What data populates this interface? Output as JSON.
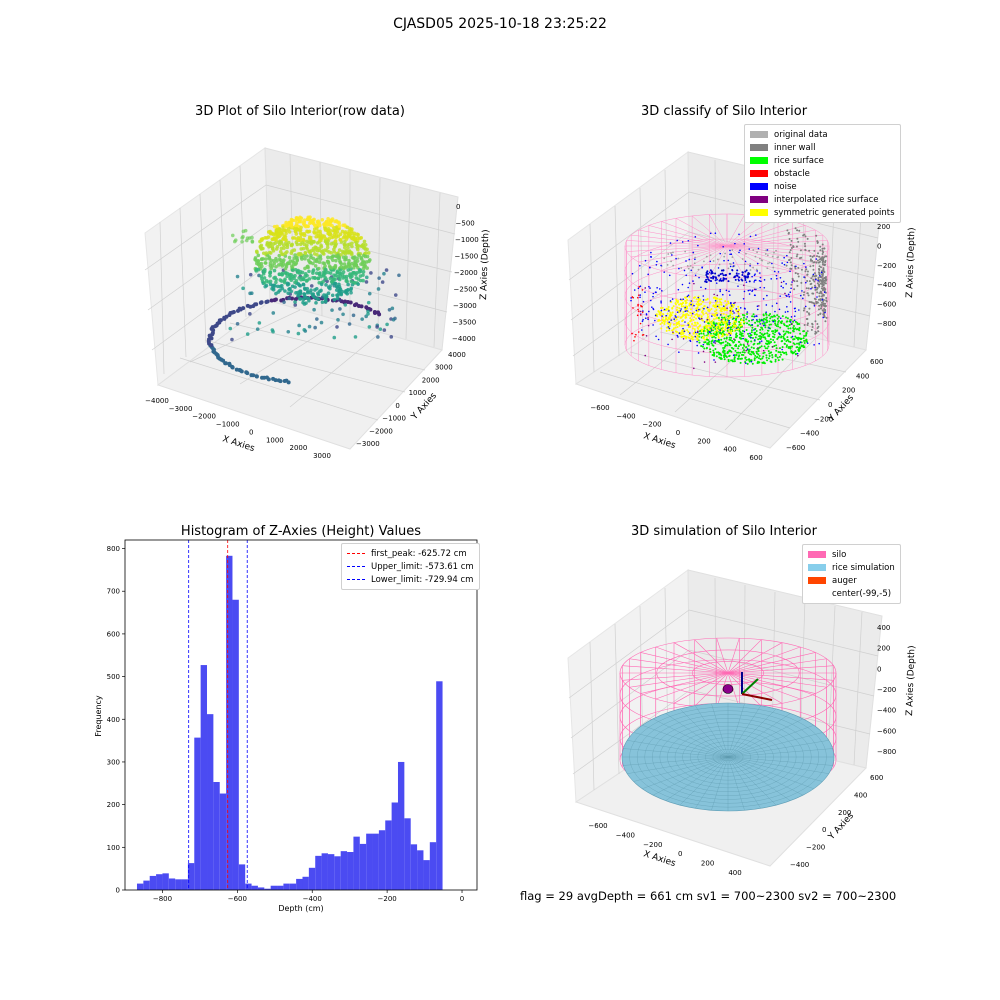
{
  "suptitle": "CJASD05 2025-10-18 23:25:22",
  "panels": {
    "raw": {
      "title": "3D Plot of Silo Interior(row data)",
      "xlabel": "X Axies",
      "ylabel": "Y Axies",
      "zlabel": "Z Axies (Depth)",
      "xticks": [
        "−4000",
        "−3000",
        "−2000",
        "−1000",
        "0",
        "1000",
        "2000",
        "3000"
      ],
      "yticks": [
        "−3000",
        "−2000",
        "−1000",
        "0",
        "1000",
        "2000",
        "3000",
        "4000"
      ],
      "zticks": [
        "0",
        "−500",
        "−1000",
        "−1500",
        "−2000",
        "−2500",
        "−3000",
        "−3500",
        "−4000"
      ]
    },
    "classify": {
      "title": "3D classify of Silo Interior",
      "xlabel": "X Axies",
      "ylabel": "Y Axies",
      "zlabel": "Z Axies (Depth)",
      "xticks": [
        "−600",
        "−400",
        "−200",
        "0",
        "200",
        "400",
        "600"
      ],
      "yticks": [
        "−600",
        "−400",
        "−200",
        "0",
        "200",
        "400",
        "600"
      ],
      "zticks": [
        "200",
        "0",
        "−200",
        "−400",
        "−600",
        "−800"
      ],
      "legend": [
        {
          "label": "original data",
          "color": "#b0b0b0"
        },
        {
          "label": "inner wall",
          "color": "#808080"
        },
        {
          "label": "rice surface",
          "color": "#00ff00"
        },
        {
          "label": "obstacle",
          "color": "#ff0000"
        },
        {
          "label": "noise",
          "color": "#0000ff"
        },
        {
          "label": "interpolated rice surface",
          "color": "#800080"
        },
        {
          "label": "symmetric generated points",
          "color": "#ffff00"
        }
      ]
    },
    "histogram": {
      "title": "Histogram of Z-Axies (Height) Values",
      "xlabel": "Depth (cm)",
      "ylabel": "Frequency",
      "legend": [
        {
          "label": "first_peak: -625.72 cm",
          "color": "#ff0000"
        },
        {
          "label": "Upper_limit: -573.61 cm",
          "color": "#0000ff"
        },
        {
          "label": "Lower_limit: -729.94 cm",
          "color": "#0000ff"
        }
      ]
    },
    "simulation": {
      "title": "3D simulation of Silo Interior",
      "xlabel": "X Axies",
      "ylabel": "Y Axies",
      "zlabel": "Z Axies (Depth)",
      "xticks": [
        "−600",
        "−400",
        "−200",
        "0",
        "200",
        "400"
      ],
      "yticks": [
        "−400",
        "−200",
        "0",
        "200",
        "400",
        "600"
      ],
      "zticks": [
        "400",
        "200",
        "0",
        "−200",
        "−400",
        "−600",
        "−800"
      ],
      "legend": [
        {
          "label": "silo",
          "color": "#ff69b4"
        },
        {
          "label": "rice simulation",
          "color": "#87ceeb"
        },
        {
          "label": "auger",
          "color": "#ff4500"
        },
        {
          "label": "center(-99,-5)",
          "color": "#ffffff"
        }
      ]
    }
  },
  "status": {
    "text": "flag = 29  avgDepth = 661 cm  sv1 = 700~2300  sv2 = 700~2300"
  },
  "chart_data": [
    {
      "type": "scatter",
      "title": "3D Plot of Silo Interior(row data)",
      "xlabel": "X Axies",
      "ylabel": "Y Axies",
      "zlabel": "Z Axies (Depth)",
      "xlim": [
        -4500,
        3500
      ],
      "ylim": [
        -3500,
        4500
      ],
      "zlim": [
        -4000,
        0
      ]
    },
    {
      "type": "scatter",
      "title": "3D classify of Silo Interior",
      "xlabel": "X Axies",
      "ylabel": "Y Axies",
      "zlabel": "Z Axies (Depth)",
      "xlim": [
        -700,
        650
      ],
      "ylim": [
        -650,
        650
      ],
      "zlim": [
        -900,
        300
      ]
    },
    {
      "type": "bar",
      "title": "Histogram of Z-Axies (Height) Values",
      "xlabel": "Depth (cm)",
      "ylabel": "Frequency",
      "xlim": [
        -900,
        40
      ],
      "ylim": [
        0,
        820
      ],
      "xticks": [
        -800,
        -600,
        -400,
        -200,
        0
      ],
      "yticks": [
        0,
        100,
        200,
        300,
        400,
        500,
        600,
        700,
        800
      ],
      "bin_width": 17,
      "bin_start": -868,
      "values": [
        15,
        22,
        33,
        37,
        39,
        27,
        25,
        25,
        63,
        357,
        527,
        412,
        253,
        226,
        783,
        680,
        60,
        15,
        10,
        6,
        3,
        10,
        10,
        15,
        15,
        26,
        31,
        52,
        80,
        86,
        84,
        79,
        91,
        89,
        125,
        108,
        132,
        132,
        140,
        163,
        205,
        300,
        168,
        107,
        93,
        70,
        112,
        489
      ],
      "vlines": [
        {
          "x": -625.72,
          "label": "first_peak: -625.72 cm",
          "color": "#ff0000"
        },
        {
          "x": -573.61,
          "label": "Upper_limit: -573.61 cm",
          "color": "#0000ff"
        },
        {
          "x": -729.94,
          "label": "Lower_limit: -729.94 cm",
          "color": "#0000ff"
        }
      ],
      "bar_color": "#4b4bf2"
    },
    {
      "type": "scatter",
      "title": "3D simulation of Silo Interior",
      "xlabel": "X Axies",
      "ylabel": "Y Axies",
      "zlabel": "Z Axies (Depth)",
      "xlim": [
        -700,
        550
      ],
      "ylim": [
        -550,
        650
      ],
      "zlim": [
        -900,
        450
      ]
    }
  ]
}
